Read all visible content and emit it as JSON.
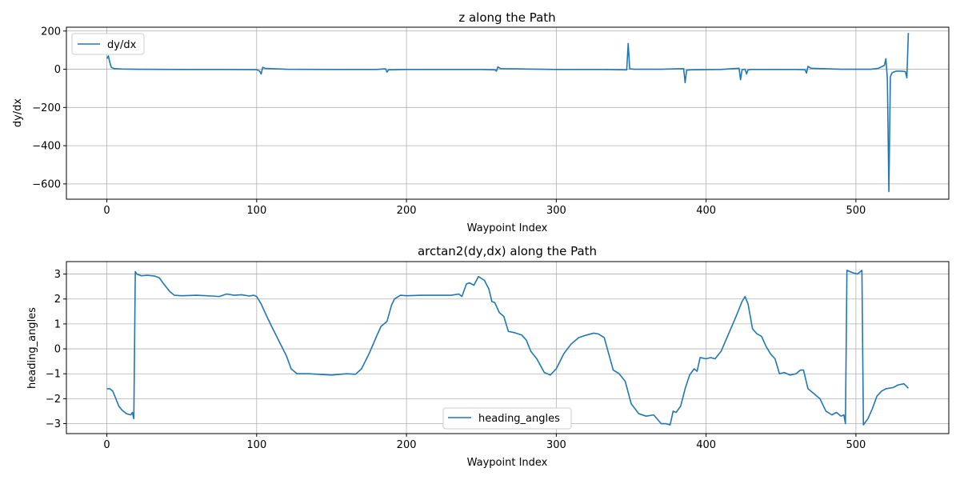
{
  "chart_data": [
    {
      "type": "line",
      "title": "z along the Path",
      "xlabel": "Waypoint Index",
      "ylabel": "dy/dx",
      "xlim": [
        -27,
        562
      ],
      "ylim": [
        -680,
        220
      ],
      "xticks": [
        0,
        100,
        200,
        300,
        400,
        500
      ],
      "yticks": [
        200,
        0,
        -200,
        -400,
        -600
      ],
      "ytick_labels": [
        "200",
        "0",
        "−200",
        "−400",
        "−600"
      ],
      "grid": true,
      "legend": "upper-left",
      "series": [
        {
          "name": "dy/dx",
          "color": "#1f77b4",
          "x": [
            0,
            1,
            2,
            3,
            5,
            10,
            20,
            50,
            80,
            100,
            102,
            103,
            104,
            106,
            120,
            150,
            180,
            186,
            187,
            188,
            200,
            230,
            250,
            259,
            260,
            261,
            263,
            280,
            300,
            330,
            346,
            347,
            348,
            349,
            352,
            370,
            385,
            386,
            387,
            390,
            410,
            422,
            423,
            424,
            426,
            427,
            428,
            430,
            440,
            460,
            466,
            467,
            468,
            470,
            490,
            510,
            515,
            519,
            520,
            521,
            522,
            523,
            524,
            525,
            527,
            530,
            533,
            534,
            535
          ],
          "y": [
            55,
            70,
            35,
            10,
            3,
            1,
            0,
            -1,
            -1,
            -2,
            -10,
            -25,
            10,
            4,
            0,
            -1,
            -1,
            2,
            -15,
            -3,
            -1,
            -1,
            -1,
            -3,
            -10,
            12,
            3,
            1,
            -1,
            -1,
            -3,
            -3,
            135,
            2,
            0,
            0,
            3,
            -70,
            -5,
            -3,
            -1,
            5,
            -55,
            -2,
            0,
            -25,
            -3,
            -1,
            -1,
            -1,
            -2,
            -20,
            15,
            5,
            0,
            0,
            5,
            20,
            55,
            -50,
            -640,
            -40,
            -20,
            -15,
            -10,
            -10,
            -12,
            -45,
            190
          ]
        }
      ]
    },
    {
      "type": "line",
      "title": "arctan2(dy,dx) along the Path",
      "xlabel": "Waypoint Index",
      "ylabel": "heading_angles",
      "xlim": [
        -27,
        562
      ],
      "ylim": [
        -3.4,
        3.5
      ],
      "xticks": [
        0,
        100,
        200,
        300,
        400,
        500
      ],
      "yticks": [
        3,
        2,
        1,
        0,
        -1,
        -2,
        -3
      ],
      "ytick_labels": [
        "3",
        "2",
        "1",
        "0",
        "−1",
        "−2",
        "−3"
      ],
      "grid": true,
      "legend": "lower-center",
      "series": [
        {
          "name": "heading_angles",
          "color": "#1f77b4",
          "x": [
            0,
            2,
            4,
            6,
            8,
            10,
            13,
            16,
            17,
            18,
            19,
            20,
            23,
            27,
            32,
            35,
            38,
            42,
            45,
            50,
            60,
            70,
            75,
            80,
            85,
            90,
            95,
            98,
            100,
            103,
            106,
            110,
            115,
            120,
            123,
            127,
            135,
            150,
            160,
            166,
            170,
            175,
            180,
            183,
            185,
            187,
            190,
            192,
            196,
            200,
            210,
            220,
            230,
            235,
            237,
            240,
            242,
            245,
            248,
            252,
            255,
            257,
            259,
            262,
            265,
            268,
            272,
            277,
            280,
            283,
            287,
            292,
            296,
            300,
            305,
            310,
            315,
            320,
            325,
            328,
            332,
            335,
            338,
            342,
            346,
            350,
            355,
            360,
            365,
            370,
            373,
            376,
            378,
            380,
            383,
            386,
            389,
            392,
            394,
            396,
            400,
            403,
            406,
            410,
            415,
            420,
            424,
            426,
            428,
            431,
            434,
            437,
            440,
            443,
            446,
            449,
            452,
            456,
            460,
            463,
            465,
            468,
            472,
            476,
            480,
            484,
            487,
            490,
            492,
            493,
            494,
            496,
            498,
            501,
            503,
            504,
            505,
            508,
            511,
            514,
            517,
            520,
            525,
            528,
            532,
            535
          ],
          "y": [
            -1.6,
            -1.6,
            -1.7,
            -2.0,
            -2.3,
            -2.45,
            -2.6,
            -2.65,
            -2.55,
            -2.8,
            3.1,
            3.0,
            2.93,
            2.95,
            2.92,
            2.85,
            2.6,
            2.3,
            2.15,
            2.13,
            2.15,
            2.12,
            2.1,
            2.2,
            2.15,
            2.17,
            2.12,
            2.15,
            2.1,
            1.8,
            1.4,
            0.9,
            0.3,
            -0.3,
            -0.8,
            -1.0,
            -1.0,
            -1.05,
            -1.0,
            -1.02,
            -0.8,
            -0.2,
            0.5,
            0.9,
            1.0,
            1.1,
            1.75,
            2.0,
            2.15,
            2.13,
            2.15,
            2.15,
            2.15,
            2.2,
            2.1,
            2.6,
            2.65,
            2.55,
            2.9,
            2.75,
            2.4,
            1.9,
            1.85,
            1.45,
            1.3,
            0.7,
            0.65,
            0.55,
            0.35,
            -0.1,
            -0.4,
            -0.95,
            -1.05,
            -0.8,
            -0.2,
            0.2,
            0.45,
            0.55,
            0.63,
            0.6,
            0.45,
            -0.2,
            -0.85,
            -1.0,
            -1.3,
            -2.2,
            -2.6,
            -2.7,
            -2.65,
            -3.0,
            -3.0,
            -3.05,
            -2.5,
            -2.55,
            -2.3,
            -1.6,
            -1.05,
            -0.8,
            -0.9,
            -0.35,
            -0.4,
            -0.35,
            -0.4,
            -0.1,
            0.6,
            1.3,
            1.9,
            2.1,
            1.8,
            0.8,
            0.6,
            0.5,
            0.1,
            -0.2,
            -0.4,
            -1.0,
            -0.95,
            -1.05,
            -1.0,
            -0.85,
            -0.85,
            -1.6,
            -1.8,
            -2.0,
            -2.5,
            -2.65,
            -2.55,
            -2.7,
            -2.65,
            -3.0,
            3.15,
            3.1,
            3.05,
            3.0,
            3.1,
            3.15,
            -3.05,
            -2.8,
            -2.4,
            -1.9,
            -1.7,
            -1.6,
            -1.55,
            -1.45,
            -1.4,
            -1.58
          ]
        }
      ]
    }
  ]
}
